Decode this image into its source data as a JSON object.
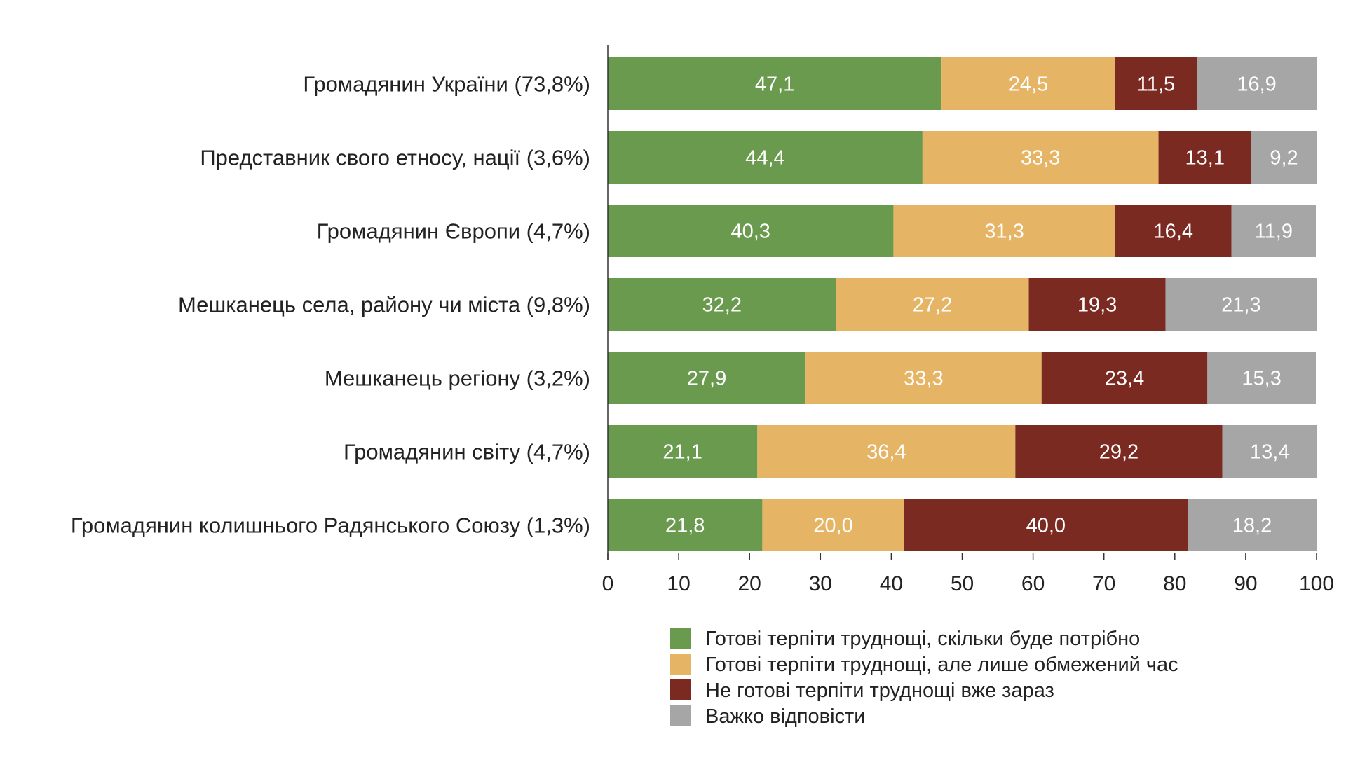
{
  "chart_data": {
    "type": "bar",
    "orientation": "horizontal",
    "stacked": true,
    "title": "",
    "xlabel": "",
    "ylabel": "",
    "xlim": [
      0,
      100
    ],
    "xticks": [
      0,
      10,
      20,
      30,
      40,
      50,
      60,
      70,
      80,
      90,
      100
    ],
    "grid": false,
    "legend_position": "bottom-right",
    "categories": [
      "Громадянин України (73,8%)",
      "Представник свого етносу, нації (3,6%)",
      "Громадянин Європи (4,7%)",
      "Мешканець села, району чи міста (9,8%)",
      "Мешканець регіону (3,2%)",
      "Громадянин світу (4,7%)",
      "Громадянин колишнього Радянського Союзу (1,3%)"
    ],
    "series": [
      {
        "name": "Готові терпіти труднощі, скільки буде потрібно",
        "color": "#6a9a4e",
        "values": [
          47.1,
          44.4,
          40.3,
          32.2,
          27.9,
          21.1,
          21.8
        ],
        "labels": [
          "47,1",
          "44,4",
          "40,3",
          "32,2",
          "27,9",
          "21,1",
          "21,8"
        ]
      },
      {
        "name": "Готові терпіти труднощі, але лише обмежений час",
        "color": "#e5b464",
        "values": [
          24.5,
          33.3,
          31.3,
          27.2,
          33.3,
          36.4,
          20.0
        ],
        "labels": [
          "24,5",
          "33,3",
          "31,3",
          "27,2",
          "33,3",
          "36,4",
          "20,0"
        ]
      },
      {
        "name": "Не готові терпіти труднощі вже зараз",
        "color": "#7b2a22",
        "values": [
          11.5,
          13.1,
          16.4,
          19.3,
          23.4,
          29.2,
          40.0
        ],
        "labels": [
          "11,5",
          "13,1",
          "16,4",
          "19,3",
          "23,4",
          "29,2",
          "40,0"
        ]
      },
      {
        "name": "Важко відповісти",
        "color": "#a6a6a6",
        "values": [
          16.9,
          9.2,
          11.9,
          21.3,
          15.3,
          13.4,
          18.2
        ],
        "labels": [
          "16,9",
          "9,2",
          "11,9",
          "21,3",
          "15,3",
          "13,4",
          "18,2"
        ]
      }
    ]
  }
}
